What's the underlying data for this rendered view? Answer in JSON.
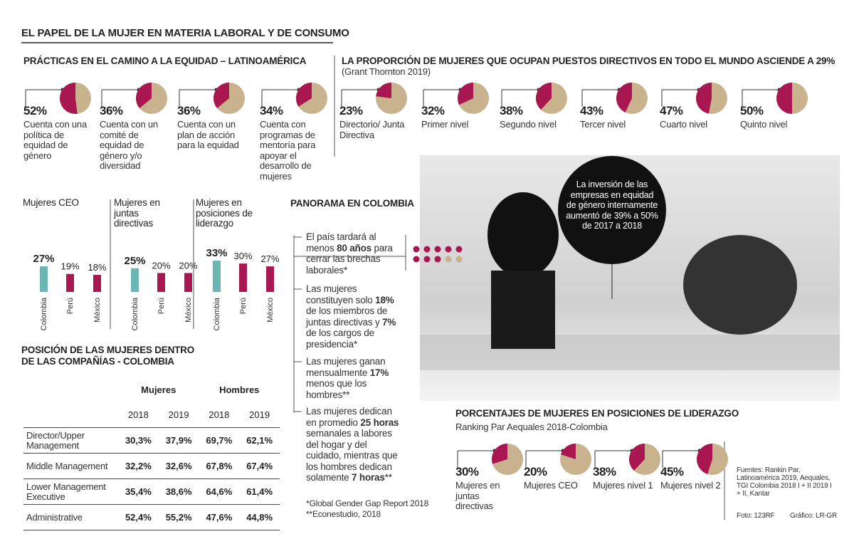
{
  "title": "EL PAPEL DE LA MUJER EN MATERIA LABORAL Y DE CONSUMO",
  "chart_data": [
    {
      "type": "pie",
      "title": "PRÁCTICAS EN EL CAMINO A LA EQUIDAD – LATINOAMÉRICA",
      "categories": [
        "Cuenta con una política de equidad de género",
        "Cuenta con un comité de equidad de género y/o diversidad",
        "Cuenta con un plan de acción para la equidad",
        "Cuenta con programas de mentoría para apoyar el desarrollo de mujeres"
      ],
      "values": [
        52,
        36,
        36,
        34
      ],
      "value_labels": [
        "52%",
        "36%",
        "36%",
        "34%"
      ],
      "color": "#a8174f",
      "rest_color": "#c9b38f"
    },
    {
      "type": "pie",
      "title": "LA PROPORCIÓN DE MUJERES QUE OCUPAN PUESTOS DIRECTIVOS EN TODO EL MUNDO ASCIENDE A 29%",
      "subtitle": "(Grant Thornton 2019)",
      "categories": [
        "Directorio/ Junta Directiva",
        "Primer nivel",
        "Segundo nivel",
        "Tercer nivel",
        "Cuarto nivel",
        "Quinto nivel"
      ],
      "values": [
        23,
        32,
        38,
        43,
        47,
        50
      ],
      "value_labels": [
        "23%",
        "32%",
        "38%",
        "43%",
        "47%",
        "50%"
      ],
      "color": "#a8174f",
      "rest_color": "#c9b38f"
    },
    {
      "type": "bar",
      "title": "Mujeres CEO",
      "categories": [
        "Colombia",
        "Perú",
        "México"
      ],
      "values": [
        27,
        19,
        18
      ],
      "value_labels": [
        "27%",
        "19%",
        "18%"
      ],
      "colors": [
        "#6bb5b5",
        "#a8174f",
        "#a8174f"
      ]
    },
    {
      "type": "bar",
      "title": "Mujeres en juntas directivas",
      "categories": [
        "Colombia",
        "Perú",
        "México"
      ],
      "values": [
        25,
        20,
        20
      ],
      "value_labels": [
        "25%",
        "20%",
        "20%"
      ],
      "colors": [
        "#6bb5b5",
        "#a8174f",
        "#a8174f"
      ]
    },
    {
      "type": "bar",
      "title": "Mujeres en posiciones de liderazgo",
      "categories": [
        "Colombia",
        "Perú",
        "México"
      ],
      "values": [
        33,
        30,
        27
      ],
      "value_labels": [
        "33%",
        "30%",
        "27%"
      ],
      "colors": [
        "#6bb5b5",
        "#a8174f",
        "#a8174f"
      ]
    },
    {
      "type": "pie",
      "title": "PORCENTAJES DE MUJERES EN POSICIONES DE LIDERAZGO",
      "subtitle": "Ranking Par Aequales 2018-Colombia",
      "categories": [
        "Mujeres en juntas directivas",
        "Mujeres CEO",
        "Mujeres nivel 1",
        "Mujeres nivel 2"
      ],
      "values": [
        30,
        20,
        38,
        45
      ],
      "value_labels": [
        "30%",
        "20%",
        "38%",
        "45%"
      ],
      "color": "#a8174f",
      "rest_color": "#c9b38f"
    }
  ],
  "table": {
    "title": "POSICIÓN DE LAS MUJERES DENTRO DE LAS COMPAÑÍAS - COLOMBIA",
    "groups": [
      "Mujeres",
      "Hombres"
    ],
    "years": [
      "2018",
      "2019",
      "2018",
      "2019"
    ],
    "rows": [
      [
        "Director/Upper Management",
        "30,3%",
        "37,9%",
        "69,7%",
        "62,1%"
      ],
      [
        "Middle Management",
        "32,2%",
        "32,6%",
        "67,8%",
        "67,4%"
      ],
      [
        "Lower Management Executive",
        "35,4%",
        "38,6%",
        "64,6%",
        "61,4%"
      ],
      [
        "Administrative",
        "52,4%",
        "55,2%",
        "47,6%",
        "44,8%"
      ]
    ]
  },
  "panorama": {
    "title": "PANORAMA EN COLOMBIA",
    "items": [
      [
        "El país tardará al menos ",
        "80 años",
        " para cerrar las brechas laborales*"
      ],
      [
        "Las mujeres constituyen solo ",
        "18%",
        " de los miembros de juntas directivas y ",
        "7%",
        " de los cargos de presidencia*"
      ],
      [
        "Las mujeres ganan mensualmente ",
        "17%",
        " menos que los hombres**"
      ],
      [
        "Las mujeres dedican en promedio ",
        "25 horas",
        " semanales a labores del hogar y del cuidado, mientras que los hombres dedican solamente ",
        "7 horas",
        "**"
      ]
    ],
    "footnotes": [
      "*Global Gender Gap Report 2018",
      "**Econestudio, 2018"
    ]
  },
  "bubble": "La inversión de las empresas en equidad de género internamente aumentó de 39% a 50% de 2017 a 2018",
  "sources": "Fuentes: Rankin Par, Latinoamérica 2019, Aequales, TGI Colombia 2018 I + II 2019 I + II, Kantar",
  "photo_credit": "Foto: 123RF",
  "graphic_credit": "Gráfico: LR-GR"
}
